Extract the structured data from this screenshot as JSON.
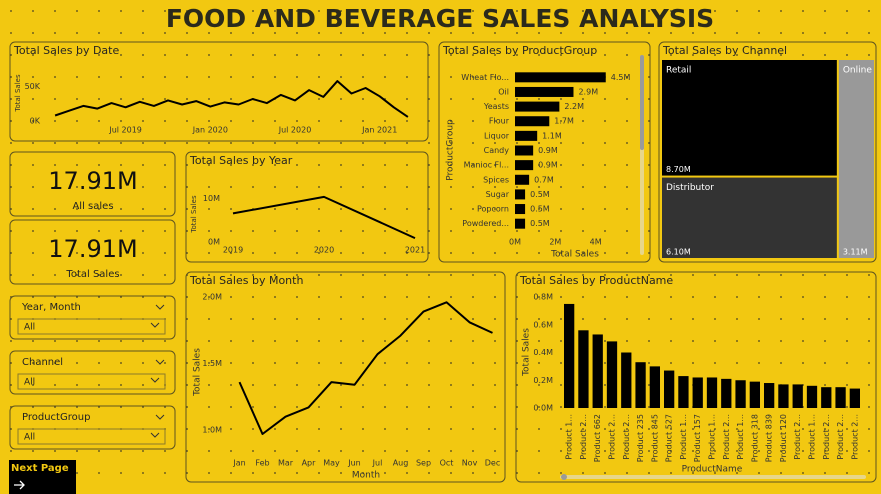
{
  "title": "FOOD AND BEVERAGE SALES ANALYSIS",
  "cards": [
    {
      "value": "17.91M",
      "label": "All sales"
    },
    {
      "value": "17.91M",
      "label": "Total Sales"
    }
  ],
  "slicers": [
    {
      "title": "Year, Month",
      "value": "All"
    },
    {
      "title": "Channel",
      "value": "All"
    },
    {
      "title": "ProductGroup",
      "value": "All"
    }
  ],
  "next_page": "Next Page",
  "chart_data": [
    {
      "type": "line",
      "title": "Total Sales by Date",
      "y_label": "Total Sales",
      "color": "#000000",
      "x": [
        "2019-02",
        "2019-03",
        "2019-04",
        "2019-05",
        "2019-06",
        "2019-07",
        "2019-08",
        "2019-09",
        "2019-10",
        "2019-11",
        "2019-12",
        "2020-01",
        "2020-02",
        "2020-03",
        "2020-04",
        "2020-05",
        "2020-06",
        "2020-07",
        "2020-08",
        "2020-09",
        "2020-10",
        "2020-11",
        "2020-12",
        "2021-01",
        "2021-02",
        "2021-03"
      ],
      "values": [
        8000,
        15000,
        22000,
        18000,
        26000,
        20000,
        28000,
        22000,
        30000,
        24000,
        29000,
        21000,
        27000,
        24000,
        32000,
        26000,
        38000,
        30000,
        45000,
        35000,
        58000,
        40000,
        48000,
        36000,
        20000,
        6000
      ],
      "xticks": [
        {
          "value": "2019-07",
          "label": "Jul 2019"
        },
        {
          "value": "2020-01",
          "label": "Jan 2020"
        },
        {
          "value": "2020-07",
          "label": "Jul 2020"
        },
        {
          "value": "2021-01",
          "label": "Jan 2021"
        }
      ],
      "ylim": [
        0,
        80000
      ],
      "yticks": [
        {
          "value": 0,
          "label": "0K"
        },
        {
          "value": 50000,
          "label": "50K"
        }
      ]
    },
    {
      "type": "bar",
      "orientation": "horizontal",
      "title": "Total Sales by ProductGroup",
      "x_label": "Total Sales",
      "y_label": "ProductGroup",
      "color": "#000000",
      "categories": [
        "Wheat Flo...",
        "Oil",
        "Yeasts",
        "Flour",
        "Liquor",
        "Candy",
        "Manioc Fl...",
        "Spices",
        "Sugar",
        "Popcorn",
        "Powdered..."
      ],
      "values": [
        4500000,
        2900000,
        2200000,
        1700000,
        1100000,
        900000,
        900000,
        700000,
        500000,
        500000,
        500000
      ],
      "value_labels": [
        "4.5M",
        "2.9M",
        "2.2M",
        "1.7M",
        "1.1M",
        "0.9M",
        "0.9M",
        "0.7M",
        "0.5M",
        "0.5M",
        "0.5M"
      ],
      "xlim": [
        0,
        6000000
      ],
      "xticks": [
        {
          "value": 0,
          "label": "0M"
        },
        {
          "value": 2000000,
          "label": "2M"
        },
        {
          "value": 4000000,
          "label": "4M"
        }
      ]
    },
    {
      "type": "treemap",
      "title": "Total Sales by Channel",
      "categories": [
        "Retail",
        "Distributor",
        "Online"
      ],
      "values": [
        8700000,
        6100000,
        3110000
      ],
      "value_labels": [
        "8.70M",
        "6.10M",
        "3.11M"
      ],
      "colors": [
        "#000000",
        "#333333",
        "#999999"
      ]
    },
    {
      "type": "line",
      "title": "Total Sales by Year",
      "y_label": "Total Sales",
      "color": "#000000",
      "x": [
        2019,
        2020,
        2021
      ],
      "values": [
        6600000,
        10400000,
        900000
      ],
      "xlim": [
        2019,
        2021
      ],
      "xticks": [
        2019,
        2020,
        2021
      ],
      "ylim": [
        0,
        12000000
      ],
      "yticks": [
        {
          "value": 0,
          "label": "0M"
        },
        {
          "value": 10000000,
          "label": "10M"
        }
      ]
    },
    {
      "type": "line",
      "title": "Total Sales by Month",
      "x_label": "Month",
      "y_label": "Total Sales",
      "color": "#000000",
      "categories": [
        "Jan",
        "Feb",
        "Mar",
        "Apr",
        "May",
        "Jun",
        "Jul",
        "Aug",
        "Sep",
        "Oct",
        "Nov",
        "Dec"
      ],
      "values": [
        1360000,
        970000,
        1100000,
        1170000,
        1360000,
        1340000,
        1570000,
        1710000,
        1890000,
        1960000,
        1810000,
        1730000
      ],
      "ylim": [
        850000,
        2000000
      ],
      "yticks": [
        {
          "value": 1000000,
          "label": "1.0M"
        },
        {
          "value": 1500000,
          "label": "1.5M"
        },
        {
          "value": 2000000,
          "label": "2.0M"
        }
      ]
    },
    {
      "type": "bar",
      "title": "Total Sales by ProductName",
      "x_label": "ProductName",
      "y_label": "Total Sales",
      "color": "#000000",
      "categories": [
        "Product 1...",
        "Product 2...",
        "Product 662",
        "Product 2...",
        "Product 2...",
        "Product 235",
        "Product 845",
        "Product 527",
        "Product 1...",
        "Product 157",
        "Product 1...",
        "Product 2...",
        "Product 1...",
        "Product 318",
        "Product 839",
        "Product 120",
        "Product 2...",
        "Product 1...",
        "Product 2...",
        "Product 2...",
        "Product 2..."
      ],
      "values": [
        750000,
        560000,
        530000,
        480000,
        400000,
        330000,
        300000,
        270000,
        230000,
        220000,
        220000,
        210000,
        200000,
        190000,
        180000,
        170000,
        170000,
        160000,
        150000,
        150000,
        140000
      ],
      "ylim": [
        0,
        800000
      ],
      "yticks": [
        {
          "value": 0,
          "label": "0.0M"
        },
        {
          "value": 200000,
          "label": "0.2M"
        },
        {
          "value": 400000,
          "label": "0.4M"
        },
        {
          "value": 600000,
          "label": "0.6M"
        },
        {
          "value": 800000,
          "label": "0.8M"
        }
      ]
    }
  ]
}
